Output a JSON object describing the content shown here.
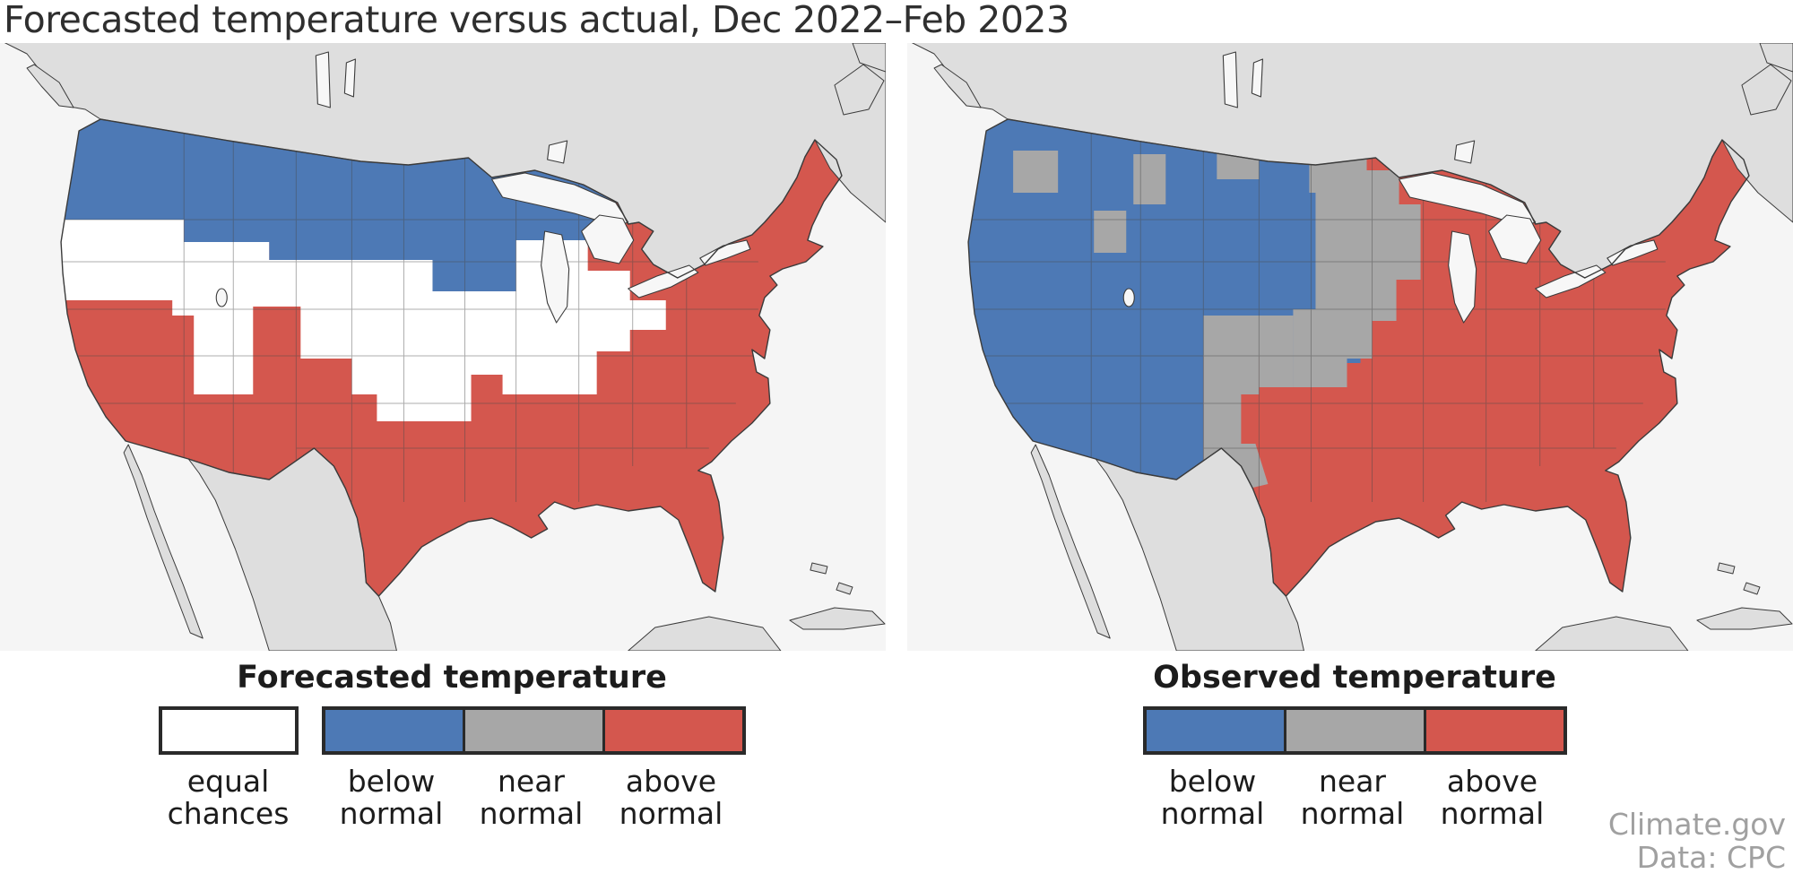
{
  "title": "Forecasted temperature versus actual, Dec 2022–Feb 2023",
  "attribution": {
    "source": "Climate.gov",
    "data": "Data: CPC"
  },
  "colors": {
    "below_normal": "#4d79b5",
    "near_normal": "#a7a7a7",
    "above_normal": "#d4574e",
    "equal_chances": "#ffffff",
    "ocean": "#f5f5f5",
    "foreign_land": "#dedede",
    "water": "#f7f7f7",
    "outline": "#3b3b3b",
    "state_line": "#4a4a4a",
    "page_background": "#ffffff",
    "title_text": "#2f2f2f",
    "label_text": "#1c1c1c",
    "attribution_text": "#a0a0a0",
    "legend_border": "#2a2a2a"
  },
  "panels": [
    {
      "key": "forecast",
      "legend_title": "Forecasted temperature",
      "legend_groups": [
        {
          "items": [
            {
              "key": "equal_chances",
              "label": "equal chances"
            }
          ]
        },
        {
          "items": [
            {
              "key": "below_normal",
              "label": "below normal"
            },
            {
              "key": "near_normal",
              "label": "near normal"
            },
            {
              "key": "above_normal",
              "label": "above normal"
            }
          ]
        }
      ]
    },
    {
      "key": "observed",
      "legend_title": "Observed temperature",
      "legend_groups": [
        {
          "items": [
            {
              "key": "below_normal",
              "label": "below normal"
            },
            {
              "key": "near_normal",
              "label": "near normal"
            },
            {
              "key": "above_normal",
              "label": "above normal"
            }
          ]
        }
      ]
    }
  ],
  "chart_data": {
    "type": "heatmap",
    "subtype": "choropleth-map-pair",
    "title": "Forecasted temperature versus actual, Dec 2022–Feb 2023",
    "extent": "contiguous United States with surrounding Canada and Mexico shown in gray",
    "categories": [
      "equal chances",
      "below normal",
      "near normal",
      "above normal"
    ],
    "category_colors": {
      "equal chances": "#ffffff",
      "below normal": "#4d79b5",
      "near normal": "#a7a7a7",
      "above normal": "#d4574e"
    },
    "maps": [
      {
        "name": "Forecasted temperature",
        "regions": {
          "below_normal": [
            "Washington",
            "northern Oregon",
            "Idaho",
            "Montana",
            "Wyoming",
            "North Dakota",
            "South Dakota",
            "eastern Nebraska",
            "Minnesota",
            "Iowa",
            "Wisconsin",
            "Michigan Upper Peninsula",
            "northwest Lower Michigan"
          ],
          "equal_chances": [
            "southern Oregon",
            "northern California",
            "Nevada",
            "northern Utah",
            "Colorado",
            "western/southern Nebraska",
            "Kansas",
            "north-central Oklahoma",
            "Missouri",
            "Illinois",
            "Indiana",
            "Ohio",
            "Lower Michigan"
          ],
          "near_normal": [],
          "above_normal": [
            "central and southern California",
            "Arizona",
            "New Mexico",
            "southern Utah",
            "Texas",
            "western and southern Oklahoma",
            "Arkansas",
            "Louisiana",
            "Mississippi",
            "Alabama",
            "Georgia",
            "Florida",
            "Tennessee",
            "Kentucky",
            "West Virginia",
            "Virginia",
            "North Carolina",
            "South Carolina",
            "Maryland",
            "Delaware",
            "New Jersey",
            "Pennsylvania",
            "New York",
            "Connecticut",
            "Rhode Island",
            "Massachusetts",
            "Vermont",
            "New Hampshire",
            "Maine"
          ]
        }
      },
      {
        "name": "Observed temperature",
        "regions": {
          "below_normal": [
            "Washington",
            "Oregon",
            "California",
            "Nevada",
            "Idaho",
            "most of Montana",
            "Wyoming",
            "Utah",
            "Arizona",
            "northwest Colorado",
            "western Nebraska",
            "northwest North Dakota patch"
          ],
          "near_normal": [
            "central Washington patch",
            "central Idaho patch",
            "central Montana patches",
            "eastern Montana",
            "North Dakota",
            "eastern South Dakota",
            "western Minnesota",
            "western Iowa",
            "eastern Nebraska",
            "Kansas",
            "northwest Missouri",
            "southeast Colorado",
            "New Mexico",
            "Big Bend west Texas"
          ],
          "equal_chances": [],
          "above_normal": [
            "northeast Minnesota",
            "Wisconsin",
            "Michigan",
            "eastern Iowa",
            "Missouri",
            "Illinois",
            "Indiana",
            "Ohio",
            "Kentucky",
            "Tennessee",
            "Oklahoma",
            "Texas",
            "Arkansas",
            "Louisiana",
            "Mississippi",
            "Alabama",
            "Georgia",
            "Florida",
            "South Carolina",
            "North Carolina",
            "Virginia",
            "West Virginia",
            "Maryland",
            "Delaware",
            "New Jersey",
            "Pennsylvania",
            "New York",
            "Connecticut",
            "Rhode Island",
            "Massachusetts",
            "Vermont",
            "New Hampshire",
            "Maine"
          ]
        }
      }
    ]
  }
}
